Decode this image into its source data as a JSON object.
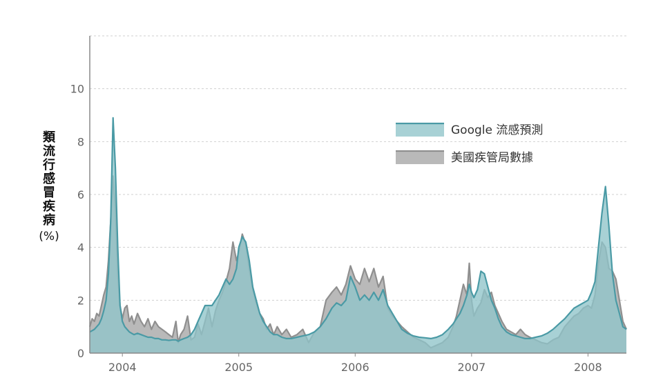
{
  "chart_data": {
    "type": "area",
    "title": "",
    "xlabel": "",
    "ylabel": "類流行感冒疾病",
    "ylabel_unit": "(%)",
    "ylim": [
      0,
      12
    ],
    "yticks": [
      0,
      2,
      4,
      6,
      8,
      10
    ],
    "xlim": [
      2003.72,
      2008.33
    ],
    "xticks": [
      {
        "label": "2004",
        "x": 2004.0
      },
      {
        "label": "2005",
        "x": 2005.0
      },
      {
        "label": "2006",
        "x": 2006.0
      },
      {
        "label": "2007",
        "x": 2007.0
      },
      {
        "label": "2008",
        "x": 2008.0
      }
    ],
    "grid": "horizontal dashed",
    "legend_position": "top-right",
    "series": [
      {
        "name": "美國疾管局數據",
        "color": "#8f8f8f",
        "fill": "#b9b9b9",
        "x": [
          2003.72,
          2003.74,
          2003.76,
          2003.78,
          2003.8,
          2003.82,
          2003.84,
          2003.86,
          2003.88,
          2003.9,
          2003.92,
          2003.94,
          2003.96,
          2003.98,
          2004.0,
          2004.02,
          2004.04,
          2004.06,
          2004.08,
          2004.1,
          2004.13,
          2004.16,
          2004.19,
          2004.22,
          2004.25,
          2004.28,
          2004.31,
          2004.34,
          2004.37,
          2004.4,
          2004.43,
          2004.46,
          2004.48,
          2004.5,
          2004.53,
          2004.56,
          2004.59,
          2004.62,
          2004.65,
          2004.68,
          2004.71,
          2004.74,
          2004.77,
          2004.8,
          2004.83,
          2004.86,
          2004.89,
          2004.92,
          2004.95,
          2004.98,
          2005.0,
          2005.03,
          2005.06,
          2005.09,
          2005.12,
          2005.15,
          2005.18,
          2005.21,
          2005.24,
          2005.27,
          2005.3,
          2005.33,
          2005.37,
          2005.41,
          2005.45,
          2005.5,
          2005.55,
          2005.6,
          2005.65,
          2005.7,
          2005.75,
          2005.8,
          2005.84,
          2005.88,
          2005.92,
          2005.96,
          2006.0,
          2006.04,
          2006.08,
          2006.12,
          2006.16,
          2006.2,
          2006.24,
          2006.28,
          2006.32,
          2006.36,
          2006.4,
          2006.45,
          2006.5,
          2006.55,
          2006.6,
          2006.65,
          2006.7,
          2006.75,
          2006.8,
          2006.84,
          2006.87,
          2006.9,
          2006.93,
          2006.96,
          2006.98,
          2007.0,
          2007.02,
          2007.05,
          2007.08,
          2007.11,
          2007.14,
          2007.17,
          2007.2,
          2007.23,
          2007.26,
          2007.3,
          2007.34,
          2007.38,
          2007.42,
          2007.46,
          2007.5,
          2007.55,
          2007.6,
          2007.65,
          2007.7,
          2007.75,
          2007.8,
          2007.84,
          2007.88,
          2007.92,
          2007.96,
          2008.0,
          2008.03,
          2008.06,
          2008.09,
          2008.12,
          2008.15,
          2008.18,
          2008.21,
          2008.24,
          2008.27,
          2008.3,
          2008.33
        ],
        "values": [
          1.0,
          1.3,
          1.2,
          1.5,
          1.4,
          1.8,
          2.2,
          2.5,
          3.5,
          5.0,
          6.7,
          5.5,
          3.0,
          1.8,
          1.3,
          1.7,
          1.8,
          1.2,
          1.4,
          1.1,
          1.5,
          1.2,
          1.0,
          1.3,
          0.9,
          1.2,
          1.0,
          0.9,
          0.8,
          0.7,
          0.6,
          1.2,
          0.4,
          0.7,
          0.9,
          1.4,
          0.5,
          0.6,
          1.1,
          0.7,
          1.2,
          1.7,
          1.0,
          1.6,
          2.0,
          2.3,
          2.7,
          3.2,
          4.2,
          3.5,
          3.8,
          4.5,
          4.1,
          3.2,
          2.4,
          1.9,
          1.5,
          1.3,
          0.9,
          1.1,
          0.7,
          1.0,
          0.7,
          0.9,
          0.6,
          0.7,
          0.9,
          0.4,
          0.8,
          1.0,
          2.0,
          2.3,
          2.5,
          2.2,
          2.6,
          3.3,
          2.8,
          2.6,
          3.2,
          2.7,
          3.2,
          2.5,
          2.9,
          1.7,
          1.4,
          1.2,
          1.0,
          0.8,
          0.6,
          0.5,
          0.4,
          0.2,
          0.3,
          0.4,
          0.6,
          1.0,
          1.4,
          2.0,
          2.6,
          2.2,
          3.4,
          2.0,
          1.4,
          1.7,
          1.9,
          2.4,
          2.1,
          2.3,
          1.8,
          1.5,
          1.2,
          0.9,
          0.8,
          0.7,
          0.9,
          0.7,
          0.6,
          0.5,
          0.4,
          0.35,
          0.5,
          0.6,
          1.0,
          1.2,
          1.4,
          1.5,
          1.7,
          1.8,
          1.7,
          2.2,
          3.4,
          4.2,
          4.0,
          3.2,
          3.1,
          2.8,
          2.0,
          1.2,
          0.9
        ],
        "cdc_note": ""
      },
      {
        "name": "Google 流感預測",
        "color": "#4a9aa5",
        "fill": "#8fc4c9",
        "x": [
          2003.72,
          2003.74,
          2003.76,
          2003.78,
          2003.8,
          2003.82,
          2003.84,
          2003.86,
          2003.88,
          2003.9,
          2003.92,
          2003.94,
          2003.96,
          2003.98,
          2004.0,
          2004.02,
          2004.04,
          2004.06,
          2004.08,
          2004.1,
          2004.13,
          2004.16,
          2004.19,
          2004.22,
          2004.25,
          2004.28,
          2004.31,
          2004.34,
          2004.37,
          2004.4,
          2004.43,
          2004.46,
          2004.48,
          2004.5,
          2004.53,
          2004.56,
          2004.59,
          2004.62,
          2004.65,
          2004.68,
          2004.71,
          2004.74,
          2004.77,
          2004.8,
          2004.83,
          2004.86,
          2004.89,
          2004.92,
          2004.95,
          2004.98,
          2005.0,
          2005.03,
          2005.06,
          2005.09,
          2005.12,
          2005.15,
          2005.18,
          2005.21,
          2005.24,
          2005.27,
          2005.3,
          2005.33,
          2005.37,
          2005.41,
          2005.45,
          2005.5,
          2005.55,
          2005.6,
          2005.65,
          2005.7,
          2005.75,
          2005.8,
          2005.84,
          2005.88,
          2005.92,
          2005.96,
          2006.0,
          2006.04,
          2006.08,
          2006.12,
          2006.16,
          2006.2,
          2006.24,
          2006.28,
          2006.32,
          2006.36,
          2006.4,
          2006.45,
          2006.5,
          2006.55,
          2006.6,
          2006.65,
          2006.7,
          2006.75,
          2006.8,
          2006.84,
          2006.87,
          2006.9,
          2006.93,
          2006.96,
          2006.98,
          2007.0,
          2007.02,
          2007.05,
          2007.08,
          2007.11,
          2007.14,
          2007.17,
          2007.2,
          2007.23,
          2007.26,
          2007.3,
          2007.34,
          2007.38,
          2007.42,
          2007.46,
          2007.5,
          2007.55,
          2007.6,
          2007.65,
          2007.7,
          2007.75,
          2007.8,
          2007.84,
          2007.88,
          2007.92,
          2007.96,
          2008.0,
          2008.03,
          2008.06,
          2008.09,
          2008.12,
          2008.15,
          2008.18,
          2008.21,
          2008.24,
          2008.27,
          2008.3,
          2008.33
        ],
        "values": [
          0.8,
          0.85,
          0.9,
          1.0,
          1.1,
          1.3,
          1.6,
          2.0,
          3.0,
          5.0,
          8.9,
          7.0,
          4.0,
          1.8,
          1.2,
          1.0,
          0.9,
          0.8,
          0.75,
          0.7,
          0.75,
          0.7,
          0.65,
          0.6,
          0.6,
          0.55,
          0.55,
          0.5,
          0.5,
          0.48,
          0.5,
          0.5,
          0.45,
          0.5,
          0.55,
          0.6,
          0.7,
          0.9,
          1.2,
          1.5,
          1.8,
          1.8,
          1.8,
          2.0,
          2.2,
          2.5,
          2.8,
          2.6,
          2.8,
          3.2,
          4.0,
          4.4,
          4.2,
          3.5,
          2.5,
          2.0,
          1.5,
          1.2,
          1.0,
          0.8,
          0.7,
          0.7,
          0.6,
          0.55,
          0.55,
          0.6,
          0.65,
          0.7,
          0.8,
          1.0,
          1.3,
          1.7,
          1.9,
          1.8,
          2.0,
          2.9,
          2.5,
          2.0,
          2.2,
          2.0,
          2.3,
          2.0,
          2.4,
          1.8,
          1.5,
          1.2,
          0.9,
          0.75,
          0.65,
          0.6,
          0.58,
          0.55,
          0.6,
          0.7,
          0.9,
          1.1,
          1.3,
          1.5,
          1.8,
          2.2,
          2.6,
          2.3,
          2.1,
          2.4,
          3.1,
          3.0,
          2.5,
          2.0,
          1.7,
          1.3,
          1.0,
          0.8,
          0.7,
          0.65,
          0.6,
          0.55,
          0.55,
          0.6,
          0.65,
          0.75,
          0.9,
          1.1,
          1.3,
          1.5,
          1.7,
          1.8,
          1.9,
          2.0,
          2.3,
          2.7,
          4.0,
          5.3,
          6.3,
          4.8,
          3.0,
          2.0,
          1.5,
          1.0,
          0.9
        ]
      }
    ]
  }
}
